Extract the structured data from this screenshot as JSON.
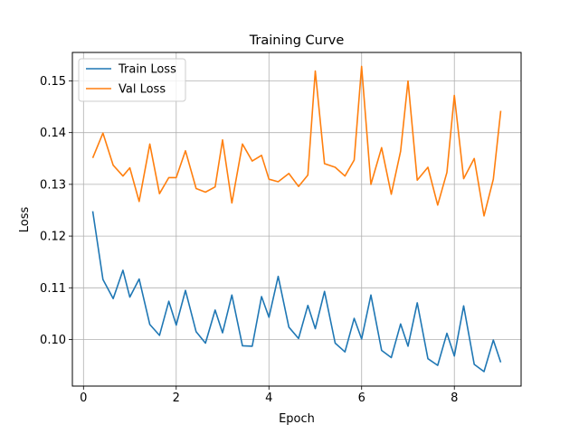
{
  "chart_data": {
    "type": "line",
    "title": "Training Curve",
    "xlabel": "Epoch",
    "ylabel": "Loss",
    "xlim": [
      -0.24,
      9.44
    ],
    "ylim": [
      0.091,
      0.1555
    ],
    "xticks": [
      0,
      2,
      4,
      6,
      8
    ],
    "xtick_labels": [
      "0",
      "2",
      "4",
      "6",
      "8"
    ],
    "yticks": [
      0.1,
      0.11,
      0.12,
      0.13,
      0.14,
      0.15
    ],
    "ytick_labels": [
      "0.10",
      "0.11",
      "0.12",
      "0.13",
      "0.14",
      "0.15"
    ],
    "grid": true,
    "legend_position": "top-left",
    "x": [
      0.2,
      0.42,
      0.64,
      0.85,
      1.0,
      1.2,
      1.43,
      1.64,
      1.84,
      2.0,
      2.2,
      2.43,
      2.63,
      2.84,
      3.0,
      3.2,
      3.43,
      3.64,
      3.84,
      4.0,
      4.2,
      4.43,
      4.64,
      4.84,
      5.0,
      5.2,
      5.43,
      5.64,
      5.84,
      6.0,
      6.2,
      6.43,
      6.64,
      6.84,
      7.0,
      7.2,
      7.43,
      7.64,
      7.84,
      8.0,
      8.2,
      8.43,
      8.64,
      8.84,
      9.0
    ],
    "series": [
      {
        "name": "Train Loss",
        "color": "#1f77b4",
        "values": [
          0.1248,
          0.1116,
          0.1079,
          0.1134,
          0.1082,
          0.1117,
          0.1029,
          0.1008,
          0.1074,
          0.1028,
          0.1095,
          0.1015,
          0.0993,
          0.1057,
          0.1013,
          0.1086,
          0.0988,
          0.0987,
          0.1083,
          0.1043,
          0.1122,
          0.1024,
          0.1002,
          0.1066,
          0.1021,
          0.1093,
          0.0993,
          0.0976,
          0.1041,
          0.1001,
          0.1086,
          0.0979,
          0.0965,
          0.103,
          0.0987,
          0.1071,
          0.0963,
          0.095,
          0.1012,
          0.0968,
          0.1065,
          0.0952,
          0.0938,
          0.0999,
          0.0956
        ]
      },
      {
        "name": "Val Loss",
        "color": "#ff7f0e",
        "values": [
          0.1351,
          0.1399,
          0.1337,
          0.1316,
          0.1332,
          0.1267,
          0.1378,
          0.1282,
          0.1313,
          0.1313,
          0.1365,
          0.1292,
          0.1285,
          0.1295,
          0.1386,
          0.1264,
          0.1378,
          0.1345,
          0.1356,
          0.131,
          0.1305,
          0.1321,
          0.1296,
          0.1318,
          0.1519,
          0.134,
          0.1333,
          0.1316,
          0.1347,
          0.1528,
          0.13,
          0.1371,
          0.1281,
          0.1364,
          0.15,
          0.1308,
          0.1333,
          0.126,
          0.1323,
          0.1472,
          0.1311,
          0.135,
          0.1239,
          0.131,
          0.1442
        ]
      }
    ]
  }
}
